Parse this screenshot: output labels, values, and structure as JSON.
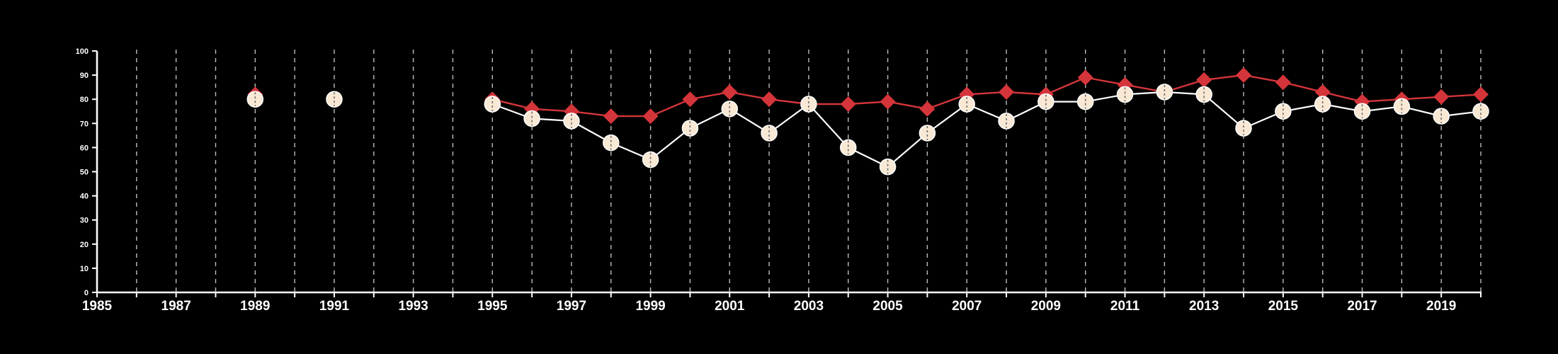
{
  "chart_data": {
    "type": "line",
    "title": "",
    "xlabel": "",
    "ylabel": "",
    "xlim": [
      1985,
      2020
    ],
    "ylim": [
      0,
      100
    ],
    "x_ticks": [
      1985,
      1986,
      1987,
      1988,
      1989,
      1990,
      1991,
      1992,
      1993,
      1994,
      1995,
      1996,
      1997,
      1998,
      1999,
      2000,
      2001,
      2002,
      2003,
      2004,
      2005,
      2006,
      2007,
      2008,
      2009,
      2010,
      2011,
      2012,
      2013,
      2014,
      2015,
      2016,
      2017,
      2018,
      2019,
      2020
    ],
    "x_tick_labels": [
      "1985",
      "1987",
      "1989",
      "1991",
      "1993",
      "1995",
      "1997",
      "1999",
      "2001",
      "2003",
      "2005",
      "2007",
      "2009",
      "2011",
      "2013",
      "2015",
      "2017",
      "2019"
    ],
    "y_ticks": [
      0,
      10,
      20,
      30,
      40,
      50,
      60,
      70,
      80,
      90,
      100
    ],
    "y_tick_labels": [
      "0",
      "10",
      "20",
      "30",
      "40",
      "50",
      "60",
      "70",
      "80",
      "90",
      "100"
    ],
    "grid": "vertical dashed at every year",
    "legend": "none",
    "series": [
      {
        "marker": "circle",
        "color": "#ffffff",
        "marker_fill": "#f8e8d4",
        "segments": [
          {
            "x": [
              1989
            ],
            "y": [
              80
            ]
          },
          {
            "x": [
              1991
            ],
            "y": [
              80
            ]
          },
          {
            "x": [
              1995,
              1996,
              1997,
              1998,
              1999,
              2000,
              2001,
              2002,
              2003,
              2004,
              2005,
              2006,
              2007,
              2008,
              2009,
              2010,
              2011,
              2012,
              2013,
              2014,
              2015,
              2016,
              2017,
              2018,
              2019,
              2020
            ],
            "y": [
              78,
              72,
              71,
              62,
              55,
              68,
              76,
              66,
              78,
              60,
              52,
              66,
              78,
              71,
              79,
              79,
              82,
              83,
              82,
              68,
              75,
              78,
              75,
              77,
              73,
              75
            ]
          }
        ]
      },
      {
        "marker": "diamond",
        "color": "#d4353a",
        "marker_fill": "#d4353a",
        "segments": [
          {
            "x": [
              1989
            ],
            "y": [
              82
            ]
          },
          {
            "x": [
              1991
            ],
            "y": [
              80
            ]
          },
          {
            "x": [
              1995,
              1996,
              1997,
              1998,
              1999,
              2000,
              2001,
              2002,
              2003,
              2004,
              2005,
              2006,
              2007,
              2008,
              2009,
              2010,
              2011,
              2012,
              2013,
              2014,
              2015,
              2016,
              2017,
              2018,
              2019,
              2020
            ],
            "y": [
              80,
              76,
              75,
              73,
              73,
              80,
              83,
              80,
              78,
              78,
              79,
              76,
              82,
              83,
              82,
              89,
              86,
              83,
              88,
              90,
              87,
              83,
              79,
              80,
              81,
              82
            ]
          }
        ]
      }
    ]
  }
}
